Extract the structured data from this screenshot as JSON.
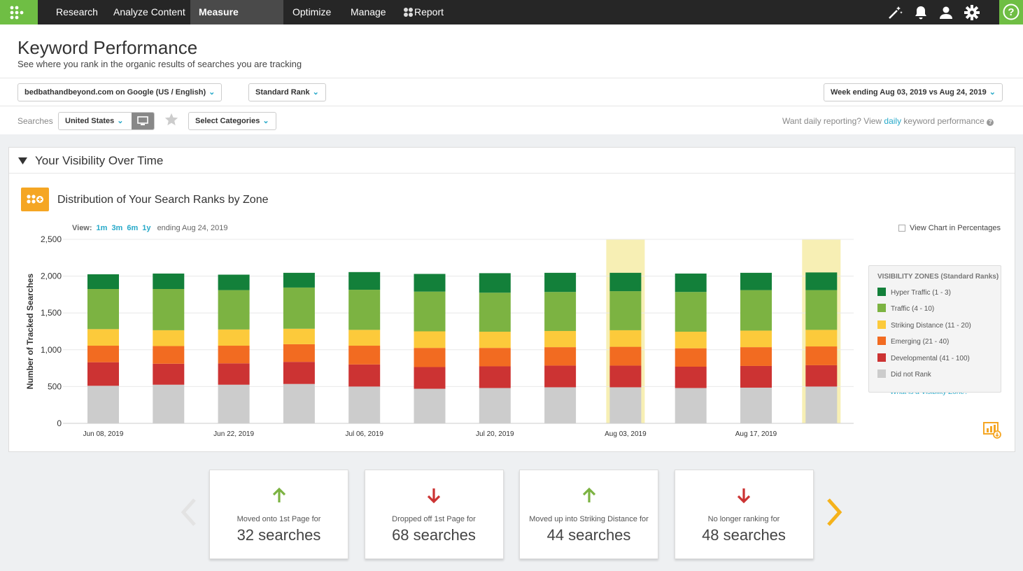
{
  "nav": {
    "items": [
      "Research",
      "Analyze Content",
      "Measure Visibility",
      "Optimize",
      "Manage",
      "Report"
    ]
  },
  "page": {
    "title": "Keyword Performance",
    "subtitle": "See where you rank in the organic results of searches you are tracking"
  },
  "controls": {
    "domain": "bedbathandbeyond.com on Google (US / English)",
    "rank": "Standard Rank",
    "week": "Week ending Aug 03, 2019 vs Aug 24, 2019",
    "searches_label": "Searches",
    "country": "United States",
    "categories": "Select Categories",
    "daily_pre": "Want daily reporting? View ",
    "daily_link": "daily",
    "daily_post": " keyword performance"
  },
  "panel": {
    "title": "Your Visibility Over Time",
    "chart_title": "Distribution of Your Search Ranks by Zone",
    "view_label": "View:",
    "ranges": [
      "1m",
      "3m",
      "6m",
      "1y"
    ],
    "ending": "ending Aug 24, 2019",
    "pct_label": "View Chart in Percentages",
    "vz_link": "What is a Visibility Zone?"
  },
  "legend": {
    "title": "VISIBILITY ZONES (Standard Ranks)"
  },
  "chart_data": {
    "type": "bar",
    "stacked": true,
    "ylabel": "Number of Tracked Searches",
    "ylim": [
      0,
      2500
    ],
    "yticks": [
      0,
      500,
      1000,
      1500,
      2000,
      2500
    ],
    "categories": [
      "Jun 08, 2019",
      "Jun 15, 2019",
      "Jun 22, 2019",
      "Jun 29, 2019",
      "Jul 06, 2019",
      "Jul 13, 2019",
      "Jul 20, 2019",
      "Jul 27, 2019",
      "Aug 03, 2019",
      "Aug 10, 2019",
      "Aug 17, 2019",
      "Aug 24, 2019"
    ],
    "xtick_labels": [
      "Jun 08, 2019",
      "",
      "Jun 22, 2019",
      "",
      "Jul 06, 2019",
      "",
      "Jul 20, 2019",
      "",
      "Aug 03, 2019",
      "",
      "Aug 17, 2019",
      ""
    ],
    "highlighted": [
      "Aug 03, 2019",
      "Aug 24, 2019"
    ],
    "series": [
      {
        "name": "Did not Rank",
        "color": "#cccccc",
        "values": [
          510,
          525,
          525,
          535,
          500,
          470,
          480,
          490,
          490,
          480,
          485,
          500
        ]
      },
      {
        "name": "Developmental (41 - 100)",
        "color": "#cc3333",
        "values": [
          320,
          285,
          290,
          300,
          300,
          295,
          295,
          295,
          295,
          290,
          295,
          290
        ]
      },
      {
        "name": "Emerging (21 - 40)",
        "color": "#f26b21",
        "values": [
          225,
          240,
          240,
          240,
          255,
          260,
          250,
          250,
          255,
          250,
          255,
          255
        ]
      },
      {
        "name": "Striking Distance (11 - 20)",
        "color": "#fcca3b",
        "values": [
          225,
          215,
          220,
          210,
          215,
          225,
          220,
          220,
          225,
          225,
          225,
          225
        ]
      },
      {
        "name": "Traffic (4 - 10)",
        "color": "#7cb342",
        "values": [
          545,
          560,
          535,
          560,
          545,
          540,
          530,
          530,
          530,
          540,
          550,
          540
        ]
      },
      {
        "name": "Hyper Traffic (1 - 3)",
        "color": "#13803a",
        "values": [
          200,
          210,
          210,
          200,
          240,
          240,
          265,
          260,
          250,
          250,
          235,
          240
        ]
      }
    ]
  },
  "cards": [
    {
      "dir": "up",
      "text": "Moved onto 1st Page for",
      "value": "32 searches"
    },
    {
      "dir": "down",
      "text": "Dropped off 1st Page for",
      "value": "68 searches"
    },
    {
      "dir": "up",
      "text": "Moved up into Striking Distance for",
      "value": "44 searches"
    },
    {
      "dir": "down",
      "text": "No longer ranking for",
      "value": "48 searches"
    }
  ]
}
